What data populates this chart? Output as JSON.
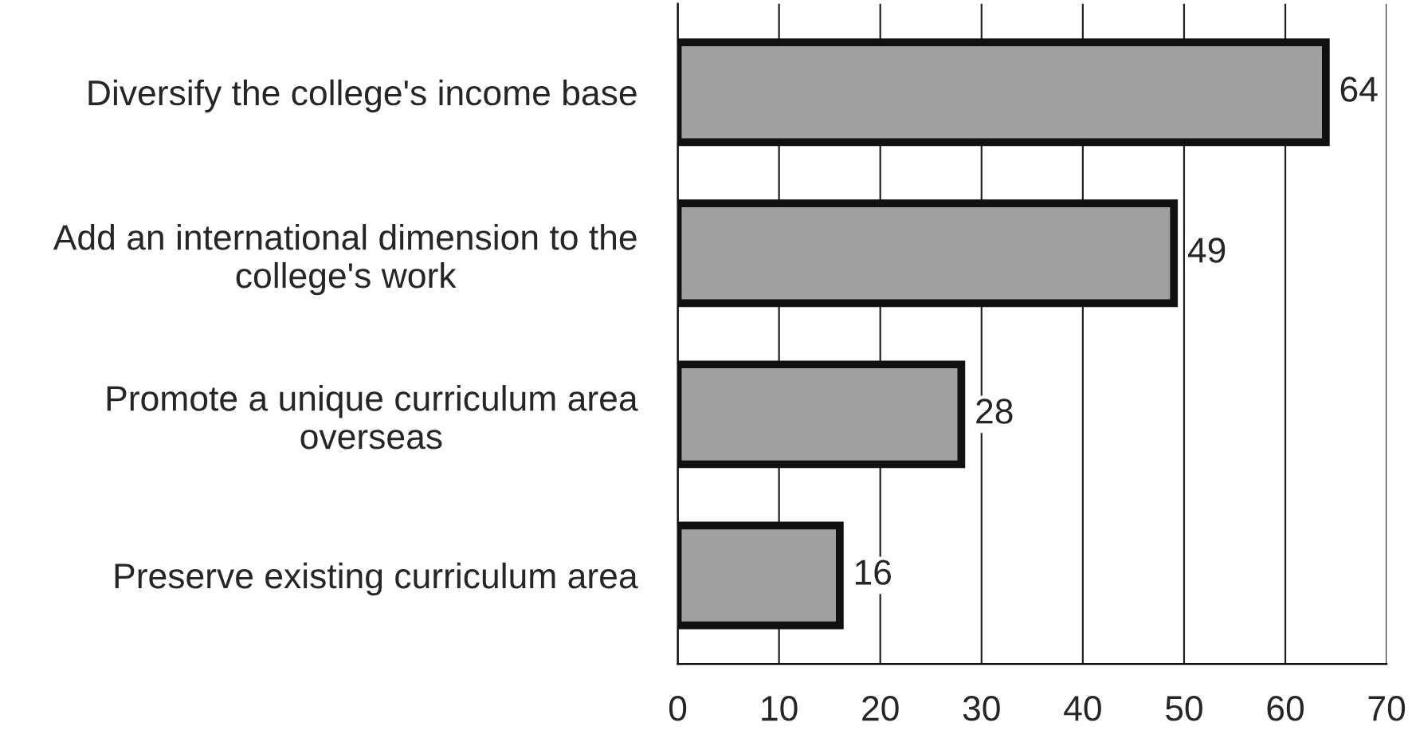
{
  "chart_data": {
    "type": "bar",
    "orientation": "horizontal",
    "categories": [
      "Diversify the college's income base",
      "Add an international dimension to the\ncollege's work",
      "Promote a unique curriculum area\noverseas",
      "Preserve existing curriculum area"
    ],
    "values": [
      64,
      49,
      28,
      16
    ],
    "color": "#a0a0a0",
    "xlim": [
      0,
      70
    ],
    "xticks": [
      0,
      10,
      20,
      30,
      40,
      50,
      60,
      70
    ],
    "grid": "x",
    "data_labels": true
  }
}
